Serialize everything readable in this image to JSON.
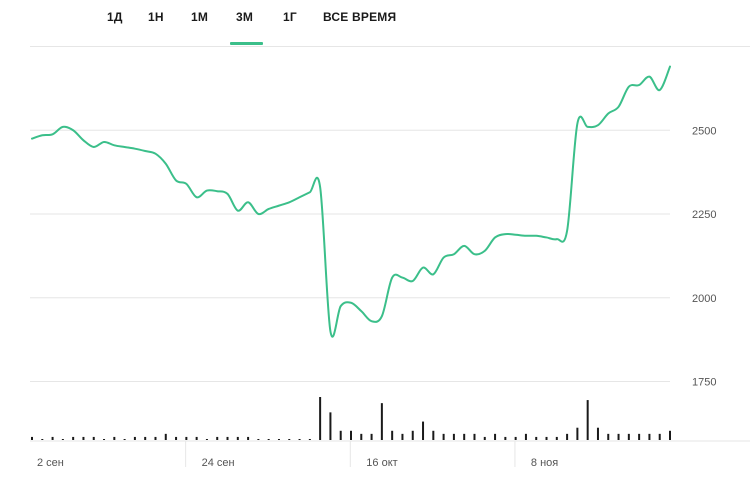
{
  "tabs": {
    "items": [
      {
        "label": "1Д"
      },
      {
        "label": "1Н"
      },
      {
        "label": "1М"
      },
      {
        "label": "3М"
      },
      {
        "label": "1Г"
      },
      {
        "label": "ВСЕ ВРЕМЯ"
      }
    ],
    "active": "3М"
  },
  "colors": {
    "line": "#3bbf8a",
    "grid": "#e6e6e6",
    "volume": "#1a1a1a",
    "active_tab_underline": "#3bbf8a"
  },
  "chart_data": {
    "type": "line",
    "title": "",
    "xlabel": "",
    "ylabel": "",
    "ylim": [
      1750,
      2750
    ],
    "y_ticks": [
      "2500",
      "2250",
      "2000",
      "1750"
    ],
    "y_tick_values": [
      2500,
      2250,
      2000,
      1750
    ],
    "x_tick_labels": [
      "2 сен",
      "24 сен",
      "16 окт",
      "8 ноя"
    ],
    "x_tick_indices": [
      0,
      16,
      32,
      48
    ],
    "grid": true,
    "legend": "none",
    "series": [
      {
        "values": [
          2475,
          2485,
          2488,
          2510,
          2500,
          2470,
          2450,
          2465,
          2455,
          2450,
          2445,
          2438,
          2430,
          2400,
          2350,
          2340,
          2300,
          2320,
          2318,
          2310,
          2260,
          2285,
          2250,
          2265,
          2275,
          2285,
          2300,
          2315,
          2330,
          1900,
          1975,
          1985,
          1960,
          1930,
          1945,
          2060,
          2060,
          2050,
          2090,
          2070,
          2120,
          2130,
          2155,
          2130,
          2140,
          2180,
          2190,
          2188,
          2185,
          2185,
          2180,
          2175,
          2200,
          2520,
          2510,
          2515,
          2550,
          2570,
          2630,
          2635,
          2660,
          2620,
          2690
        ]
      }
    ],
    "volume": [
      1,
      0,
      1,
      0,
      1,
      1,
      1,
      0,
      1,
      0,
      1,
      1,
      1,
      2,
      1,
      1,
      1,
      0,
      1,
      1,
      1,
      1,
      0,
      0,
      0,
      0,
      0,
      0,
      14,
      9,
      3,
      3,
      2,
      2,
      12,
      3,
      2,
      3,
      6,
      3,
      2,
      2,
      2,
      2,
      1,
      2,
      1,
      1,
      2,
      1,
      1,
      1,
      2,
      4,
      13,
      4,
      2,
      2,
      2,
      2,
      2,
      2,
      3
    ]
  }
}
